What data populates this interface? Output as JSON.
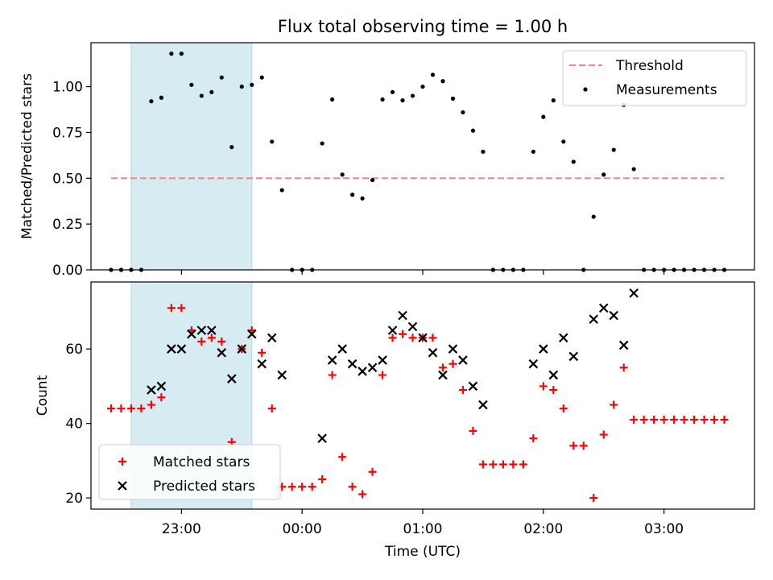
{
  "figure": {
    "title": "Flux total observing time = 1.00 h",
    "xlabel": "Time (UTC)",
    "xtick_labels": [
      "23:00",
      "00:00",
      "01:00",
      "02:00",
      "03:00"
    ]
  },
  "colors": {
    "threshold": "#ff7f7f",
    "shade": "#add8e6",
    "matched": "#ff0000",
    "predicted": "#000000",
    "measurements": "#000000"
  },
  "chart_data": [
    {
      "type": "scatter",
      "title": "Flux total observing time = 1.00 h",
      "xlabel": "",
      "ylabel": "Matched/Predicted stars",
      "x_unit": "UTC time",
      "xlim": [
        "22:15",
        "03:45"
      ],
      "ylim": [
        0.0,
        1.24
      ],
      "yticks": [
        0.0,
        0.25,
        0.5,
        0.75,
        1.0
      ],
      "ytick_labels": [
        "0.00",
        "0.25",
        "0.50",
        "0.75",
        "1.00"
      ],
      "legend": {
        "placement": "top-right",
        "entries": [
          "Threshold",
          "Measurements"
        ]
      },
      "shaded_interval": [
        "22:35",
        "23:35"
      ],
      "threshold": {
        "name": "Threshold",
        "x": [
          "22:25",
          "03:30"
        ],
        "y": 0.5,
        "style": "dashed"
      },
      "series": [
        {
          "name": "Measurements",
          "marker": "dot",
          "x": [
            "22:25",
            "22:30",
            "22:35",
            "22:40",
            "22:45",
            "22:50",
            "22:55",
            "23:00",
            "23:05",
            "23:10",
            "23:15",
            "23:20",
            "23:25",
            "23:30",
            "23:35",
            "23:40",
            "23:45",
            "23:50",
            "23:55",
            "00:00",
            "00:05",
            "00:10",
            "00:15",
            "00:20",
            "00:25",
            "00:30",
            "00:35",
            "00:40",
            "00:45",
            "00:50",
            "00:55",
            "01:00",
            "01:05",
            "01:10",
            "01:15",
            "01:20",
            "01:25",
            "01:30",
            "01:35",
            "01:40",
            "01:45",
            "01:50",
            "01:55",
            "02:00",
            "02:05",
            "02:10",
            "02:15",
            "02:20",
            "02:25",
            "02:30",
            "02:35",
            "02:40",
            "02:45",
            "02:50",
            "02:55",
            "03:00",
            "03:05",
            "03:10",
            "03:15",
            "03:20",
            "03:25",
            "03:30"
          ],
          "y": [
            0.0,
            0.0,
            0.0,
            0.0,
            0.92,
            0.94,
            1.18,
            1.18,
            1.01,
            0.95,
            0.97,
            1.05,
            0.67,
            1.0,
            1.01,
            1.05,
            0.7,
            0.435,
            0.0,
            0.0,
            0.0,
            0.69,
            0.93,
            0.52,
            0.41,
            0.39,
            0.49,
            0.93,
            0.97,
            0.925,
            0.95,
            1.0,
            1.065,
            1.03,
            0.935,
            0.86,
            0.76,
            0.645,
            0.0,
            0.0,
            0.0,
            0.0,
            0.645,
            0.835,
            0.925,
            0.7,
            0.59,
            0.0,
            0.29,
            0.52,
            0.655,
            0.9,
            0.55,
            0.0,
            0.0,
            0.0,
            0.0,
            0.0,
            0.0,
            0.0,
            0.0,
            0.0
          ]
        }
      ]
    },
    {
      "type": "scatter",
      "title": "",
      "xlabel": "Time (UTC)",
      "ylabel": "Count",
      "x_unit": "UTC time",
      "xlim": [
        "22:15",
        "03:45"
      ],
      "ylim": [
        17,
        78
      ],
      "yticks": [
        20,
        40,
        60
      ],
      "ytick_labels": [
        "20",
        "40",
        "60"
      ],
      "xticks": [
        "23:00",
        "00:00",
        "01:00",
        "02:00",
        "03:00"
      ],
      "legend": {
        "placement": "bottom-left",
        "entries": [
          "Matched stars",
          "Predicted stars"
        ]
      },
      "shaded_interval": [
        "22:35",
        "23:35"
      ],
      "series": [
        {
          "name": "Matched stars",
          "marker": "plus",
          "x": [
            "22:25",
            "22:30",
            "22:35",
            "22:40",
            "22:45",
            "22:50",
            "22:55",
            "23:00",
            "23:05",
            "23:10",
            "23:15",
            "23:20",
            "23:25",
            "23:30",
            "23:35",
            "23:40",
            "23:45",
            "23:50",
            "23:55",
            "00:00",
            "00:05",
            "00:10",
            "00:15",
            "00:20",
            "00:25",
            "00:30",
            "00:35",
            "00:40",
            "00:45",
            "00:50",
            "00:55",
            "01:00",
            "01:05",
            "01:10",
            "01:15",
            "01:20",
            "01:25",
            "01:30",
            "01:35",
            "01:40",
            "01:45",
            "01:50",
            "01:55",
            "02:00",
            "02:05",
            "02:10",
            "02:15",
            "02:20",
            "02:25",
            "02:30",
            "02:35",
            "02:40",
            "02:45",
            "02:50",
            "02:55",
            "03:00",
            "03:05",
            "03:10",
            "03:15",
            "03:20",
            "03:25",
            "03:30"
          ],
          "y": [
            44,
            44,
            44,
            44,
            45,
            47,
            71,
            71,
            65,
            62,
            63,
            62,
            35,
            60,
            65,
            59,
            44,
            23,
            23,
            23,
            23,
            25,
            53,
            31,
            23,
            21,
            27,
            53,
            63,
            64,
            63,
            63,
            63,
            55,
            56,
            49,
            38,
            29,
            29,
            29,
            29,
            29,
            36,
            50,
            49,
            44,
            34,
            34,
            20,
            37,
            45,
            55,
            41,
            41,
            41,
            41,
            41,
            41,
            41,
            41,
            41,
            41
          ]
        },
        {
          "name": "Predicted stars",
          "marker": "x",
          "x": [
            "22:45",
            "22:50",
            "22:55",
            "23:00",
            "23:05",
            "23:10",
            "23:15",
            "23:20",
            "23:25",
            "23:30",
            "23:35",
            "23:40",
            "23:45",
            "23:50",
            "00:10",
            "00:15",
            "00:20",
            "00:25",
            "00:30",
            "00:35",
            "00:40",
            "00:45",
            "00:50",
            "00:55",
            "01:00",
            "01:05",
            "01:10",
            "01:15",
            "01:20",
            "01:25",
            "01:30",
            "01:55",
            "02:00",
            "02:05",
            "02:10",
            "02:15",
            "02:25",
            "02:30",
            "02:35",
            "02:40",
            "02:45"
          ],
          "y": [
            49,
            50,
            60,
            60,
            64,
            65,
            65,
            59,
            52,
            60,
            64,
            56,
            63,
            53,
            36,
            57,
            60,
            56,
            54,
            55,
            57,
            65,
            69,
            66,
            63,
            59,
            53,
            60,
            57,
            50,
            45,
            56,
            60,
            53,
            63,
            58,
            68,
            71,
            69,
            61,
            75
          ]
        }
      ]
    }
  ]
}
